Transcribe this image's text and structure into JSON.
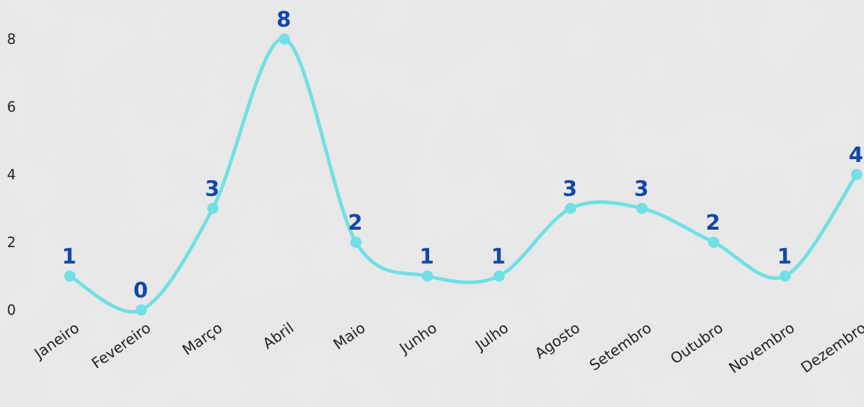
{
  "chart_data": {
    "type": "line",
    "title": "",
    "xlabel": "",
    "ylabel": "",
    "categories": [
      "Janeiro",
      "Fevereiro",
      "Março",
      "Abril",
      "Maio",
      "Junho",
      "Julho",
      "Agosto",
      "Setembro",
      "Outubro",
      "Novembro",
      "Dezembro"
    ],
    "values": [
      1,
      0,
      3,
      8,
      2,
      1,
      1,
      3,
      3,
      2,
      1,
      4
    ],
    "ylim": [
      0,
      8
    ],
    "yticks": [
      "0",
      "2",
      "4",
      "6",
      "8"
    ],
    "data_labels": [
      "1",
      "0",
      "3",
      "8",
      "2",
      "1",
      "1",
      "3",
      "3",
      "2",
      "1",
      "4"
    ],
    "smooth": true,
    "grid": false,
    "legend": "none",
    "colors": {
      "line": "#6fe0e5",
      "marker": "#6fe0e5",
      "data_label": "#1147a8",
      "tick_label": "#222222",
      "background": "#e6e6e6"
    }
  }
}
